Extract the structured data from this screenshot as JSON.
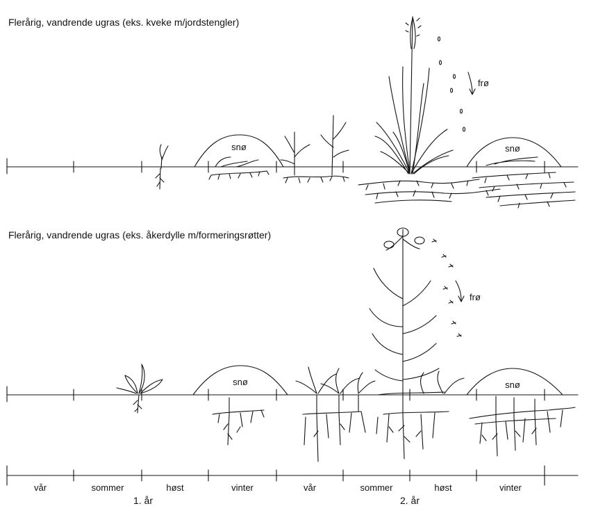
{
  "panels": [
    {
      "title": "Flerårig, vandrende ugras (eks. kveke m/jordstengler)",
      "snow_label": "snø",
      "seed_label": "frø"
    },
    {
      "title": "Flerårig, vandrende ugras (eks. åkerdylle m/formeringsrøtter)",
      "snow_label": "snø",
      "seed_label": "frø"
    }
  ],
  "timeline": {
    "seasons": [
      "vår",
      "sommer",
      "høst",
      "vinter",
      "vår",
      "sommer",
      "høst",
      "vinter"
    ],
    "years": [
      "1. år",
      "2. år"
    ]
  }
}
